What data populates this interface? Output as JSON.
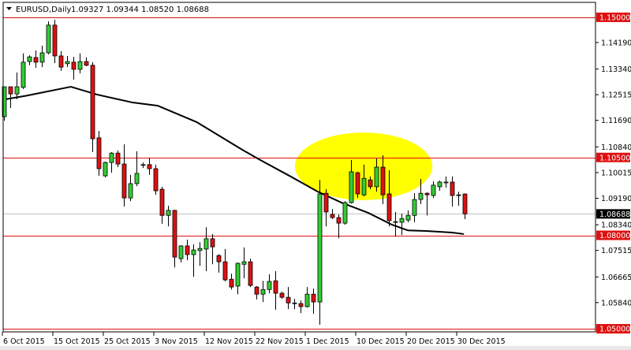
{
  "header": {
    "symbol": "EURUSD,Daily",
    "ohlc": "1.09327 1.09344 1.08520 1.08688"
  },
  "chart_data": {
    "type": "candlestick",
    "symbol": "EURUSD",
    "timeframe": "Daily",
    "ylim": [
      1.049,
      1.1548
    ],
    "grid": false,
    "colors": {
      "bull": "#33cc33",
      "bear": "#dd1111",
      "outline": "#000000",
      "ma": "#000000",
      "levels": "#dd1111",
      "price_line": "#c0c0c0",
      "highlight": "#ffff00"
    },
    "y_ticks": [
      "1.14190",
      "1.13340",
      "1.12515",
      "1.11690",
      "1.10840",
      "1.10015",
      "1.09190",
      "1.08340",
      "1.07515",
      "1.06665",
      "1.05840"
    ],
    "x_ticks": [
      {
        "bar": 1,
        "label": "6 Oct 2015"
      },
      {
        "bar": 9,
        "label": "15 Oct 2015"
      },
      {
        "bar": 17,
        "label": "25 Oct 2015"
      },
      {
        "bar": 25,
        "label": "3 Nov 2015"
      },
      {
        "bar": 33,
        "label": "12 Nov 2015"
      },
      {
        "bar": 41,
        "label": "22 Nov 2015"
      },
      {
        "bar": 49,
        "label": "1 Dec 2015"
      },
      {
        "bar": 57,
        "label": "10 Dec 2015"
      },
      {
        "bar": 65,
        "label": "20 Dec 2015"
      },
      {
        "bar": 73,
        "label": "30 Dec 2015"
      }
    ],
    "levels": [
      {
        "price": 1.15,
        "label": "1.15000"
      },
      {
        "price": 1.105,
        "label": "1.10500"
      },
      {
        "price": 1.08,
        "label": "1.08000"
      },
      {
        "price": 1.05,
        "label": "1.05000"
      }
    ],
    "current_price": {
      "price": 1.08688,
      "label": "1.08688"
    },
    "candles_ohlc": [
      [
        1.1181,
        1.1277,
        1.1168,
        1.1277
      ],
      [
        1.1277,
        1.1277,
        1.1209,
        1.1254
      ],
      [
        1.1254,
        1.1323,
        1.1237,
        1.1277
      ],
      [
        1.1275,
        1.1384,
        1.127,
        1.1356
      ],
      [
        1.1358,
        1.1378,
        1.1346,
        1.1373
      ],
      [
        1.1371,
        1.1394,
        1.1338,
        1.1356
      ],
      [
        1.1356,
        1.1409,
        1.134,
        1.1386
      ],
      [
        1.1386,
        1.1487,
        1.1381,
        1.1475
      ],
      [
        1.1475,
        1.1492,
        1.1353,
        1.1376
      ],
      [
        1.1376,
        1.1391,
        1.1328,
        1.134
      ],
      [
        1.1351,
        1.1376,
        1.134,
        1.1358
      ],
      [
        1.1356,
        1.1373,
        1.13,
        1.1333
      ],
      [
        1.1333,
        1.1384,
        1.132,
        1.1358
      ],
      [
        1.1358,
        1.1371,
        1.1343,
        1.1346
      ],
      [
        1.1346,
        1.1356,
        1.1067,
        1.111
      ],
      [
        1.1113,
        1.1135,
        1.0991,
        1.1014
      ],
      [
        1.0991,
        1.1037,
        1.0986,
        1.1034
      ],
      [
        1.1034,
        1.1067,
        1.1001,
        1.1064
      ],
      [
        1.1064,
        1.1072,
        1.1019,
        1.1029
      ],
      [
        1.1029,
        1.1092,
        1.0892,
        1.092
      ],
      [
        1.092,
        1.0994,
        1.091,
        1.0966
      ],
      [
        1.0966,
        1.107,
        1.0958,
        1.0999
      ],
      [
        1.1027,
        1.1034,
        1.1016,
        1.1027
      ],
      [
        1.1027,
        1.1049,
        1.0994,
        1.1014
      ],
      [
        1.1014,
        1.1027,
        1.093,
        1.0943
      ],
      [
        1.0948,
        1.0956,
        1.0837,
        1.0864
      ],
      [
        1.0864,
        1.0895,
        1.0829,
        1.088
      ],
      [
        1.088,
        1.0882,
        1.0697,
        1.073
      ],
      [
        1.0725,
        1.0768,
        1.0713,
        1.0766
      ],
      [
        1.0766,
        1.0786,
        1.072,
        1.0738
      ],
      [
        1.0738,
        1.0771,
        1.0667,
        1.0753
      ],
      [
        1.0751,
        1.0778,
        1.0702,
        1.0758
      ],
      [
        1.0756,
        1.0826,
        1.0685,
        1.0789
      ],
      [
        1.0789,
        1.0804,
        1.0707,
        1.0763
      ],
      [
        1.0735,
        1.074,
        1.068,
        1.0715
      ],
      [
        1.0715,
        1.0756,
        1.0652,
        1.0657
      ],
      [
        1.0659,
        1.0677,
        1.0626,
        1.0634
      ],
      [
        1.0637,
        1.0713,
        1.0611,
        1.071
      ],
      [
        1.0707,
        1.0761,
        1.0662,
        1.0715
      ],
      [
        1.0715,
        1.0725,
        1.0634,
        1.0639
      ],
      [
        1.0634,
        1.0637,
        1.0594,
        1.0611
      ],
      [
        1.0611,
        1.0654,
        1.0586,
        1.0626
      ],
      [
        1.0626,
        1.0675,
        1.0614,
        1.0652
      ],
      [
        1.0654,
        1.0685,
        1.0561,
        1.0614
      ],
      [
        1.0614,
        1.0619,
        1.0596,
        1.0601
      ],
      [
        1.0601,
        1.0634,
        1.0563,
        1.0583
      ],
      [
        1.0583,
        1.0596,
        1.0563,
        1.0583
      ],
      [
        1.0581,
        1.0591,
        1.055,
        1.0571
      ],
      [
        1.0571,
        1.0634,
        1.0568,
        1.0611
      ],
      [
        1.0611,
        1.0629,
        1.0548,
        1.0586
      ],
      [
        1.0586,
        1.0978,
        1.0513,
        1.0933
      ],
      [
        1.0935,
        1.0948,
        1.0829,
        1.0875
      ],
      [
        1.0867,
        1.0885,
        1.0852,
        1.0857
      ],
      [
        1.0857,
        1.0867,
        1.0791,
        1.0839
      ],
      [
        1.0839,
        1.091,
        1.0834,
        1.0905
      ],
      [
        1.0905,
        1.1042,
        1.0902,
        1.1004
      ],
      [
        1.1001,
        1.1004,
        1.092,
        1.0933
      ],
      [
        1.093,
        1.1027,
        1.0925,
        1.0983
      ],
      [
        1.0978,
        1.0989,
        1.0948,
        1.0956
      ],
      [
        1.0956,
        1.1047,
        1.094,
        1.1019
      ],
      [
        1.1019,
        1.1057,
        1.09,
        1.093
      ],
      [
        1.0933,
        1.1009,
        1.0829,
        1.0847
      ],
      [
        1.0844,
        1.0875,
        1.0796,
        1.0844
      ],
      [
        1.0842,
        1.087,
        1.0801,
        1.0854
      ],
      [
        1.0849,
        1.088,
        1.0842,
        1.0864
      ],
      [
        1.0864,
        1.0935,
        1.0842,
        1.0915
      ],
      [
        1.0915,
        1.0981,
        1.09,
        1.0935
      ],
      [
        1.0935,
        1.0938,
        1.0864,
        1.093
      ],
      [
        1.0928,
        1.0973,
        1.092,
        1.0961
      ],
      [
        1.0956,
        1.0976,
        1.0943,
        1.0971
      ],
      [
        1.0971,
        1.0989,
        1.0953,
        1.0971
      ],
      [
        1.0971,
        1.0989,
        1.0892,
        1.0928
      ],
      [
        1.093,
        1.094,
        1.0895,
        1.093
      ],
      [
        1.09327,
        1.09344,
        1.0852,
        1.08688
      ]
    ],
    "moving_average": [
      [
        1,
        1.1236
      ],
      [
        4.5,
        1.1248
      ],
      [
        11.6,
        1.1277
      ],
      [
        15.75,
        1.1252
      ],
      [
        21.25,
        1.1227
      ],
      [
        25.4,
        1.1216
      ],
      [
        31.6,
        1.1163
      ],
      [
        38.75,
        1.1075
      ],
      [
        41.6,
        1.1042
      ],
      [
        46.25,
        1.0991
      ],
      [
        50.75,
        1.094
      ],
      [
        54.5,
        1.0905
      ],
      [
        58.75,
        1.0872
      ],
      [
        62.5,
        1.0834
      ],
      [
        65,
        1.0816
      ],
      [
        67.9,
        1.0814
      ],
      [
        72,
        1.0809
      ],
      [
        73.9,
        1.0804
      ]
    ],
    "highlight_ellipse": {
      "bar_from": 47.1,
      "bar_to": 68.9,
      "price_from": 1.0913,
      "price_to": 1.113
    }
  }
}
